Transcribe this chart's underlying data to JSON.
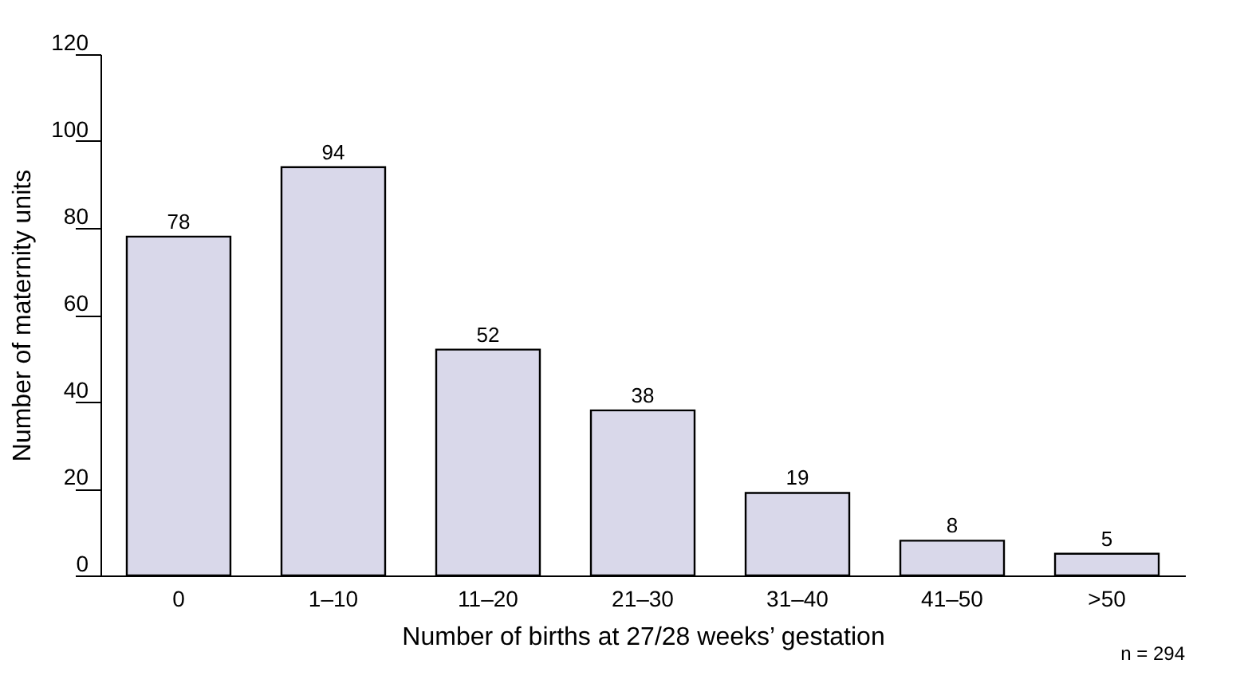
{
  "chart_data": {
    "type": "bar",
    "xlabel": "Number of births at 27/28 weeks’ gestation",
    "ylabel": "Number of maternity units",
    "categories": [
      "0",
      "1–10",
      "11–20",
      "21–30",
      "31–40",
      "41–50",
      ">50"
    ],
    "values": [
      78,
      94,
      52,
      38,
      19,
      8,
      5
    ],
    "color": "#d9d8ea",
    "ylim": [
      0,
      120
    ],
    "yticks": [
      0,
      20,
      40,
      60,
      80,
      100,
      120
    ],
    "data_labels": true,
    "grid": false,
    "annotations": [
      "n = 294"
    ]
  }
}
